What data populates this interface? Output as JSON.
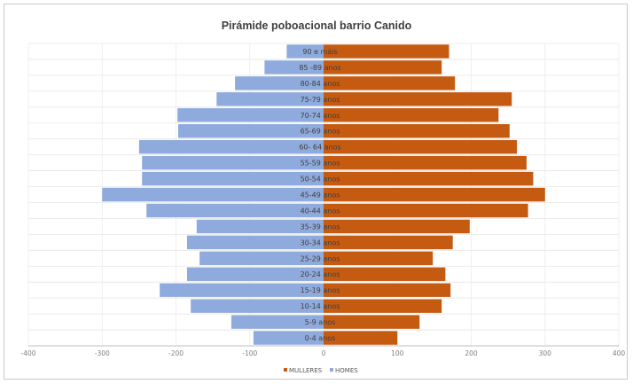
{
  "chart_data": {
    "type": "bar",
    "orientation": "horizontal-diverging",
    "title": "Pirámide poboacional barrio Canido",
    "categories": [
      "0-4 anos",
      "5-9 anos",
      "10-14 anos",
      "15-19 anos",
      "20-24 anos",
      "25-29 anos",
      "30-34 anos",
      "35-39 anos",
      "40-44 anos",
      "45-49 anos",
      "50-54 anos",
      "55-59 anos",
      "60- 64 anos",
      "65-69 anos",
      "70-74 anos",
      "75-79 anos",
      "80-84 anos",
      "85 -89 anos",
      "90 e máis"
    ],
    "series": [
      {
        "name": "MULLERES",
        "color": "#c55a11",
        "values": [
          100,
          130,
          160,
          172,
          165,
          148,
          175,
          198,
          277,
          300,
          284,
          275,
          262,
          252,
          237,
          255,
          178,
          160,
          170
        ]
      },
      {
        "name": "HOMES",
        "color": "#8faadc",
        "values": [
          95,
          125,
          180,
          222,
          185,
          168,
          185,
          172,
          240,
          300,
          246,
          246,
          250,
          197,
          198,
          145,
          120,
          80,
          50
        ]
      }
    ],
    "xticks": [
      "-400",
      "-300",
      "-200",
      "-100",
      "0",
      "100",
      "200",
      "300",
      "400"
    ],
    "xlim": [
      -400,
      400
    ],
    "grid": true,
    "legend_position": "bottom-center",
    "legend": [
      "MULLERES",
      "HOMES"
    ]
  }
}
